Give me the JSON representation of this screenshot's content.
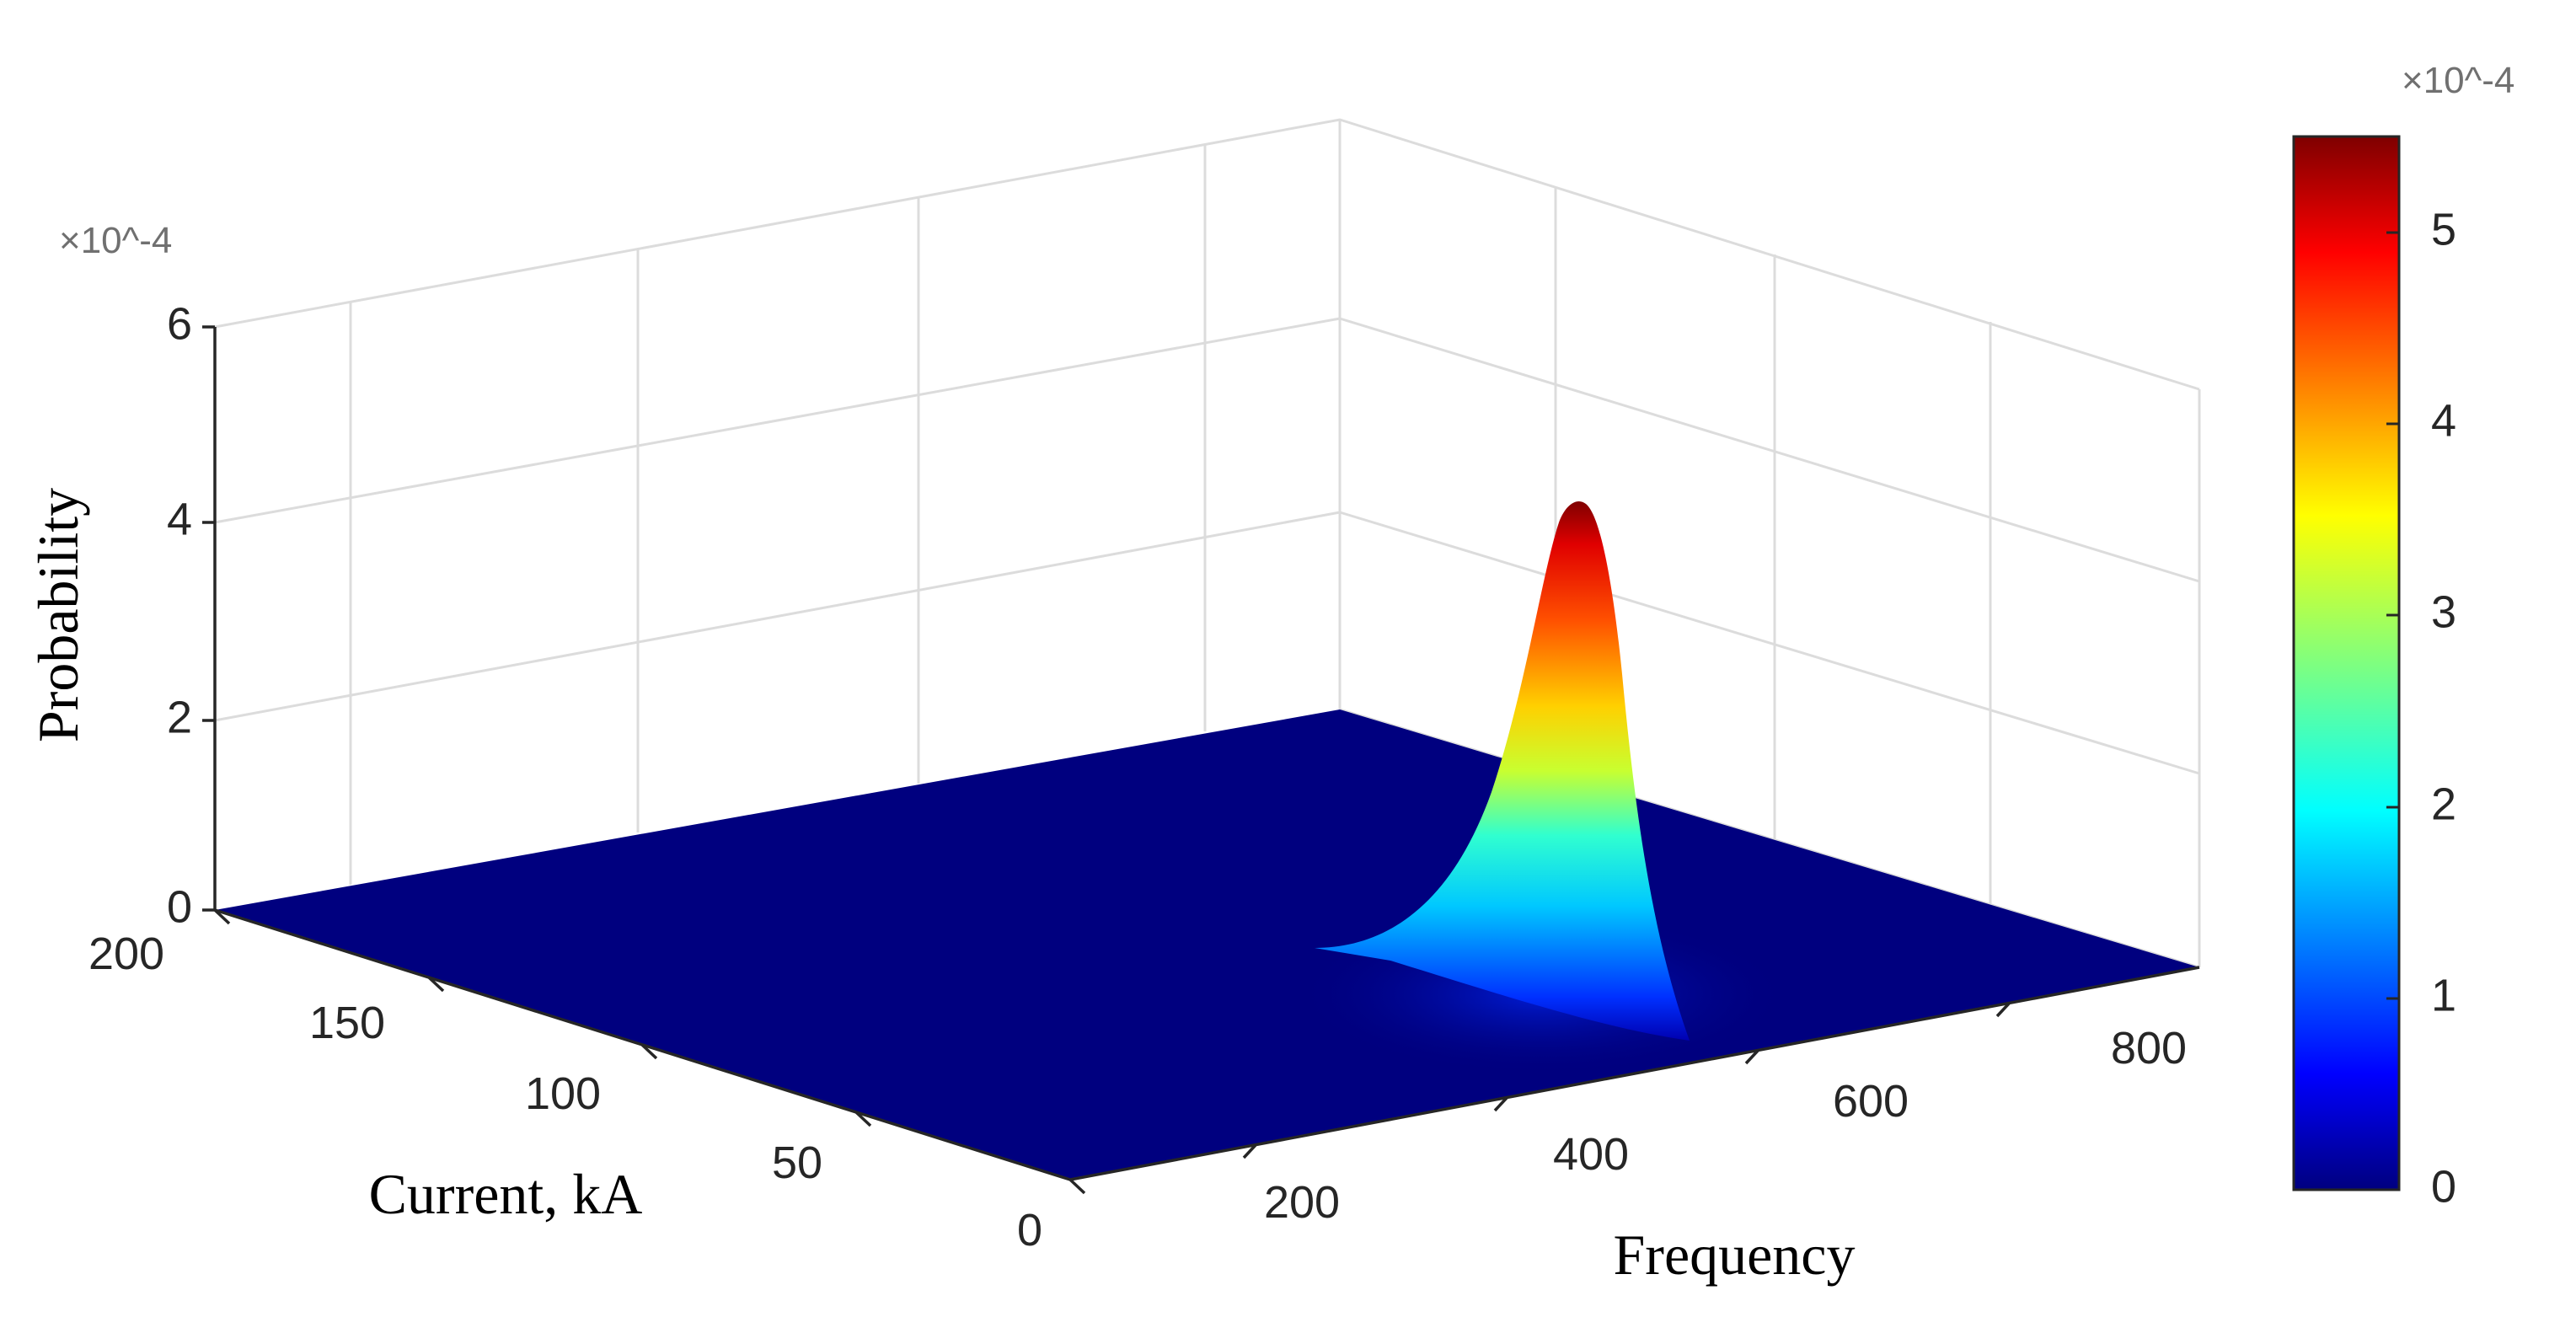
{
  "chart_data": {
    "type": "surface",
    "title": "",
    "xlabel": "Frequency",
    "ylabel": "Current, kA",
    "zlabel": "Probability",
    "x_ticks": [
      "200",
      "400",
      "600",
      "800"
    ],
    "y_ticks": [
      "0",
      "50",
      "100",
      "150",
      "200"
    ],
    "z_ticks": [
      "0",
      "2",
      "4",
      "6"
    ],
    "z_exponent": "×10^-4",
    "xlim": [
      0,
      900
    ],
    "ylim": [
      0,
      200
    ],
    "zlim": [
      0,
      0.0006
    ],
    "grid": true,
    "colormap": "jet",
    "colorbar": {
      "ticks": [
        "0",
        "1",
        "2",
        "3",
        "4",
        "5"
      ],
      "exponent": "×10^-4",
      "range": [
        0,
        0.00055
      ],
      "placement": "right"
    },
    "peak": {
      "x": 360,
      "y": 0,
      "z": 0.000555
    },
    "colors": {
      "surface_base": "#00007f",
      "grid": "#dcdcdc",
      "axis": "#262626"
    }
  }
}
